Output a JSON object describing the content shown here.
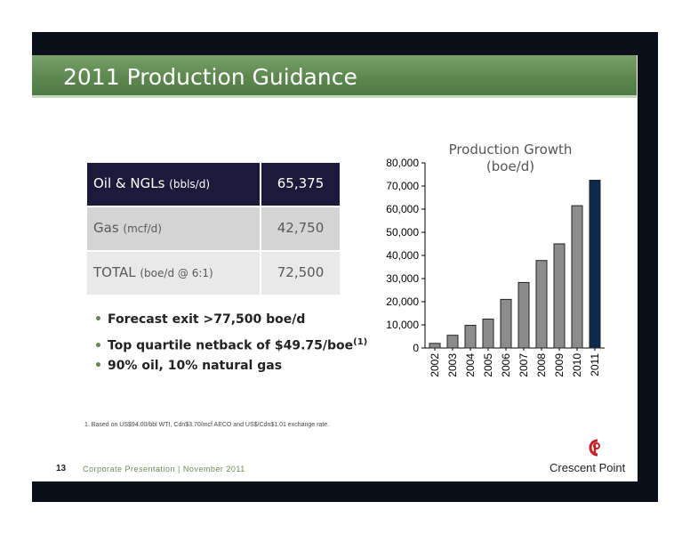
{
  "slide": {
    "title": "2011 Production Guidance",
    "page_number": "13",
    "footer_left": "Corporate Presentation | November 2011",
    "logo_text": "Crescent Point",
    "footnote": "1.    Based on US$94.00/bbl WTI, Cdn$3.70/mcf AECO and US$/Cdn$1.01 exchange rate."
  },
  "guidance_table": {
    "rows": [
      {
        "label": "Oil & NGLs",
        "unit": "(bbls/d)",
        "value": "65,375"
      },
      {
        "label": "Gas",
        "unit": "(mcf/d)",
        "value": "42,750"
      },
      {
        "label": "TOTAL",
        "unit": "(boe/d @ 6:1)",
        "value": "72,500"
      }
    ]
  },
  "bullets": [
    {
      "text": "Forecast exit >77,500 boe/d",
      "sup": ""
    },
    {
      "text": "Top quartile netback of $49.75/boe",
      "sup": "(1)"
    },
    {
      "text": "90% oil, 10% natural gas",
      "sup": ""
    }
  ],
  "colors": {
    "accent_green": "#5e8850",
    "bar_gray": "#8c8c8c",
    "bar_highlight": "#0d2a4d",
    "header_navy": "#1c1a3a"
  },
  "chart_data": {
    "type": "bar",
    "title": "Production Growth",
    "subtitle": "(boe/d)",
    "categories": [
      "2002",
      "2003",
      "2004",
      "2005",
      "2006",
      "2007",
      "2008",
      "2009",
      "2010",
      "2011"
    ],
    "values": [
      2000,
      5500,
      9800,
      12500,
      21000,
      28300,
      37800,
      45000,
      61500,
      72500
    ],
    "highlight_index": 9,
    "ylim": [
      0,
      80000
    ],
    "yticks": [
      "0",
      "10,000",
      "20,000",
      "30,000",
      "40,000",
      "50,000",
      "60,000",
      "70,000",
      "80,000"
    ],
    "grid": false,
    "legend": "none"
  }
}
